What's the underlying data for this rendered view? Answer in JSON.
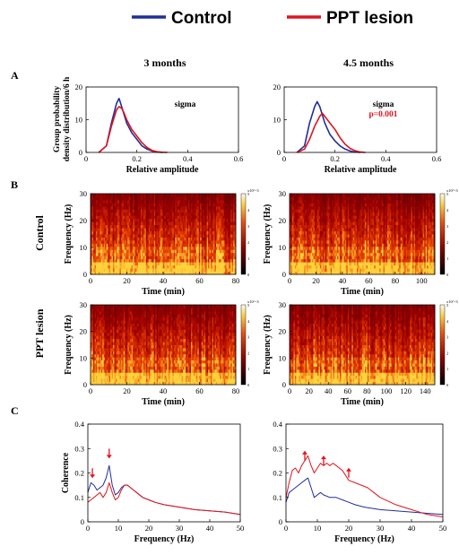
{
  "legend": [
    {
      "label": "Control",
      "color": "#1f2f9a"
    },
    {
      "label": "PPT lesion",
      "color": "#e0141e"
    }
  ],
  "column_titles": [
    "3 months",
    "4.5 months"
  ],
  "panel_letters": [
    "A",
    "B",
    "C"
  ],
  "row_labels": [
    "Control",
    "PPT lesion"
  ],
  "colorbar": {
    "exponent": "x10^-3",
    "ticks": [
      "0",
      "1",
      "2",
      "3",
      "4",
      "5"
    ]
  },
  "chart_data": [
    {
      "panel": "A",
      "type": "line",
      "title": "3 months",
      "xlabel": "Relative amplitude",
      "ylabel": [
        "Group probability",
        "density distribution/6 h"
      ],
      "xlim": [
        0,
        0.6
      ],
      "ylim": [
        0,
        20
      ],
      "xticks": [
        "0",
        "0.2",
        "0.4",
        "0.6"
      ],
      "yticks": [
        "0",
        "10",
        "20"
      ],
      "annotations": [
        {
          "text": "sigma",
          "color": "#000000"
        }
      ],
      "series": [
        {
          "name": "Control",
          "color": "#1f2f9a",
          "x": [
            0.05,
            0.08,
            0.1,
            0.12,
            0.13,
            0.14,
            0.16,
            0.18,
            0.2,
            0.22,
            0.24,
            0.26,
            0.28,
            0.3
          ],
          "y": [
            0,
            2,
            9,
            15,
            16.5,
            14,
            9,
            6,
            4,
            2,
            1,
            0.4,
            0.1,
            0
          ]
        },
        {
          "name": "PPT lesion",
          "color": "#e0141e",
          "x": [
            0.05,
            0.08,
            0.1,
            0.12,
            0.13,
            0.14,
            0.15,
            0.16,
            0.18,
            0.2,
            0.22,
            0.24,
            0.26,
            0.28,
            0.3,
            0.32
          ],
          "y": [
            0,
            2,
            8,
            13,
            14,
            13.5,
            12,
            10,
            7,
            5,
            3,
            1.5,
            0.6,
            0.2,
            0.05,
            0
          ]
        }
      ]
    },
    {
      "panel": "A",
      "type": "line",
      "title": "4.5 months",
      "xlabel": "Relative amplitude",
      "xlim": [
        0,
        0.6
      ],
      "ylim": [
        0,
        20
      ],
      "xticks": [
        "0",
        "0.2",
        "0.4",
        "0.6"
      ],
      "yticks": [
        "0",
        "10",
        "20"
      ],
      "annotations": [
        {
          "text": "sigma",
          "color": "#000000"
        },
        {
          "text": "p=0.001",
          "color": "#e0141e"
        }
      ],
      "series": [
        {
          "name": "Control",
          "color": "#1f2f9a",
          "x": [
            0.05,
            0.08,
            0.1,
            0.12,
            0.13,
            0.14,
            0.16,
            0.18,
            0.2,
            0.22,
            0.24,
            0.26,
            0.28,
            0.3
          ],
          "y": [
            0,
            2,
            9,
            14,
            15.5,
            14,
            9,
            5.5,
            3.5,
            2,
            1,
            0.4,
            0.1,
            0
          ]
        },
        {
          "name": "PPT lesion",
          "color": "#e0141e",
          "x": [
            0.05,
            0.08,
            0.1,
            0.12,
            0.14,
            0.15,
            0.16,
            0.18,
            0.2,
            0.22,
            0.24,
            0.26,
            0.28,
            0.3,
            0.32
          ],
          "y": [
            0,
            1,
            4,
            8,
            11,
            12,
            11,
            9,
            7,
            4.5,
            2.5,
            1.2,
            0.5,
            0.1,
            0
          ]
        }
      ]
    },
    {
      "panel": "B",
      "type": "heatmap",
      "row": "Control",
      "xlabel": "Time (min)",
      "ylabel": "Frequency (Hz)",
      "xlim": [
        0,
        80
      ],
      "ylim": [
        0,
        30
      ],
      "xticks": [
        "0",
        "20",
        "40",
        "60",
        "80"
      ],
      "yticks": [
        "0",
        "10",
        "20",
        "30"
      ]
    },
    {
      "panel": "B",
      "type": "heatmap",
      "row": "Control",
      "xlabel": "Time (min)",
      "ylabel": "Frequency (Hz)",
      "xlim": [
        0,
        110
      ],
      "ylim": [
        0,
        30
      ],
      "xticks": [
        "0",
        "20",
        "40",
        "60",
        "80",
        "100"
      ],
      "yticks": [
        "0",
        "10",
        "20",
        "30"
      ]
    },
    {
      "panel": "B",
      "type": "heatmap",
      "row": "PPT lesion",
      "xlabel": "Time (min)",
      "ylabel": "Frequency (Hz)",
      "xlim": [
        0,
        80
      ],
      "ylim": [
        0,
        30
      ],
      "xticks": [
        "0",
        "20",
        "40",
        "60",
        "80"
      ],
      "yticks": [
        "0",
        "10",
        "20",
        "30"
      ]
    },
    {
      "panel": "B",
      "type": "heatmap",
      "row": "PPT lesion",
      "xlabel": "Time (min)",
      "ylabel": "Frequency (Hz)",
      "xlim": [
        0,
        150
      ],
      "ylim": [
        0,
        30
      ],
      "xticks": [
        "0",
        "20",
        "40",
        "60",
        "80",
        "100",
        "120",
        "140"
      ],
      "yticks": [
        "0",
        "10",
        "20",
        "30"
      ]
    },
    {
      "panel": "C",
      "type": "line",
      "xlabel": "Frequency (Hz)",
      "ylabel": "Coherence",
      "xlim": [
        0,
        50
      ],
      "ylim": [
        0,
        0.4
      ],
      "xticks": [
        "0",
        "10",
        "20",
        "30",
        "40",
        "50"
      ],
      "yticks": [
        "0",
        "0.1",
        "0.2",
        "0.3",
        "0.4"
      ],
      "arrows": [
        {
          "x": 1.5,
          "y": 0.19,
          "dir": "down"
        },
        {
          "x": 7,
          "y": 0.27,
          "dir": "down"
        }
      ],
      "series": [
        {
          "name": "Control",
          "color": "#1f2f9a",
          "x": [
            0,
            1,
            2,
            3,
            4,
            5,
            6,
            7,
            8,
            9,
            10,
            11,
            12,
            13,
            14,
            15,
            16,
            18,
            20,
            22,
            25,
            30,
            35,
            40,
            45,
            50
          ],
          "y": [
            0.12,
            0.16,
            0.15,
            0.13,
            0.14,
            0.15,
            0.18,
            0.23,
            0.15,
            0.11,
            0.12,
            0.14,
            0.15,
            0.15,
            0.14,
            0.13,
            0.12,
            0.1,
            0.09,
            0.08,
            0.07,
            0.06,
            0.05,
            0.045,
            0.04,
            0.03
          ]
        },
        {
          "name": "PPT lesion",
          "color": "#e0141e",
          "x": [
            0,
            1,
            2,
            3,
            4,
            5,
            6,
            7,
            8,
            9,
            10,
            11,
            12,
            13,
            14,
            15,
            16,
            18,
            20,
            22,
            25,
            30,
            35,
            40,
            45,
            50
          ],
          "y": [
            0.08,
            0.09,
            0.1,
            0.11,
            0.12,
            0.1,
            0.12,
            0.16,
            0.12,
            0.09,
            0.1,
            0.13,
            0.15,
            0.15,
            0.14,
            0.13,
            0.12,
            0.1,
            0.09,
            0.08,
            0.07,
            0.06,
            0.05,
            0.045,
            0.04,
            0.03
          ]
        }
      ]
    },
    {
      "panel": "C",
      "type": "line",
      "xlabel": "Frequency (Hz)",
      "xlim": [
        0,
        50
      ],
      "ylim": [
        0,
        0.4
      ],
      "xticks": [
        "0",
        "10",
        "20",
        "30",
        "40",
        "50"
      ],
      "yticks": [
        "0",
        "0.1",
        "0.2",
        "0.3",
        "0.4"
      ],
      "arrows": [
        {
          "x": 6,
          "y": 0.28,
          "dir": "up"
        },
        {
          "x": 12,
          "y": 0.26,
          "dir": "up"
        },
        {
          "x": 20,
          "y": 0.21,
          "dir": "up"
        }
      ],
      "series": [
        {
          "name": "Control",
          "color": "#1f2f9a",
          "x": [
            0,
            1,
            2,
            3,
            4,
            5,
            6,
            7,
            8,
            9,
            10,
            11,
            12,
            14,
            16,
            18,
            20,
            22,
            25,
            30,
            35,
            40,
            45,
            50
          ],
          "y": [
            0.08,
            0.12,
            0.13,
            0.14,
            0.15,
            0.16,
            0.17,
            0.18,
            0.14,
            0.1,
            0.11,
            0.12,
            0.11,
            0.1,
            0.1,
            0.09,
            0.08,
            0.07,
            0.06,
            0.05,
            0.045,
            0.04,
            0.035,
            0.03
          ]
        },
        {
          "name": "PPT lesion",
          "color": "#e0141e",
          "x": [
            0,
            1,
            2,
            3,
            4,
            5,
            6,
            7,
            8,
            9,
            10,
            11,
            12,
            13,
            14,
            15,
            16,
            17,
            18,
            19,
            20,
            22,
            24,
            26,
            28,
            30,
            35,
            40,
            45,
            50
          ],
          "y": [
            0.1,
            0.16,
            0.21,
            0.22,
            0.2,
            0.23,
            0.25,
            0.27,
            0.23,
            0.2,
            0.22,
            0.24,
            0.23,
            0.24,
            0.23,
            0.24,
            0.23,
            0.22,
            0.21,
            0.19,
            0.17,
            0.16,
            0.15,
            0.14,
            0.12,
            0.1,
            0.07,
            0.05,
            0.03,
            0.02
          ]
        }
      ]
    }
  ]
}
